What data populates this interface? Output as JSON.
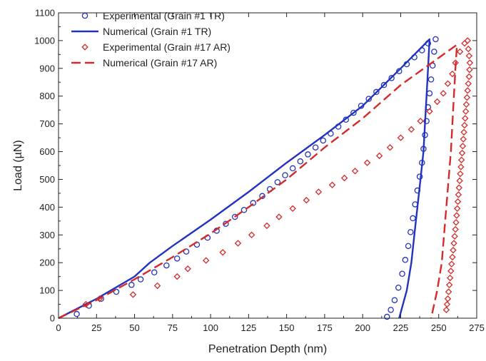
{
  "chart_data": {
    "type": "line",
    "title": "",
    "xlabel": "Penetration Depth (nm)",
    "ylabel": "Load (µN)",
    "xlim": [
      0,
      275
    ],
    "ylim": [
      0,
      1100
    ],
    "xticks": [
      0,
      25,
      50,
      75,
      100,
      125,
      150,
      175,
      200,
      225,
      250,
      275
    ],
    "yticks": [
      0,
      100,
      200,
      300,
      400,
      500,
      600,
      700,
      800,
      900,
      1000,
      1100
    ],
    "grid": false,
    "legend_position": "top-left",
    "colors": {
      "blue": "#2432c0",
      "red": "#d42a2a"
    },
    "series": [
      {
        "name": "Experimental (Grain #1 TR)",
        "style": "circle-markers",
        "color": "#2432c0",
        "points": [
          [
            12,
            15
          ],
          [
            20,
            45
          ],
          [
            28,
            70
          ],
          [
            38,
            95
          ],
          [
            48,
            120
          ],
          [
            54,
            140
          ],
          [
            63,
            165
          ],
          [
            71,
            190
          ],
          [
            78,
            215
          ],
          [
            84,
            240
          ],
          [
            91,
            265
          ],
          [
            98,
            290
          ],
          [
            104,
            315
          ],
          [
            110,
            340
          ],
          [
            116,
            365
          ],
          [
            122,
            390
          ],
          [
            128,
            415
          ],
          [
            134,
            440
          ],
          [
            139,
            465
          ],
          [
            144,
            490
          ],
          [
            149,
            515
          ],
          [
            154,
            540
          ],
          [
            159,
            565
          ],
          [
            164,
            590
          ],
          [
            169,
            615
          ],
          [
            174,
            640
          ],
          [
            179,
            665
          ],
          [
            184,
            690
          ],
          [
            189,
            715
          ],
          [
            194,
            740
          ],
          [
            199,
            765
          ],
          [
            204,
            790
          ],
          [
            209,
            815
          ],
          [
            214,
            840
          ],
          [
            219,
            865
          ],
          [
            224,
            890
          ],
          [
            229,
            915
          ],
          [
            234,
            940
          ],
          [
            239,
            965
          ],
          [
            243,
            990
          ],
          [
            248,
            1005
          ],
          [
            247,
            960
          ],
          [
            246,
            910
          ],
          [
            245,
            860
          ],
          [
            244,
            810
          ],
          [
            243,
            760
          ],
          [
            242,
            710
          ],
          [
            241,
            660
          ],
          [
            240,
            610
          ],
          [
            239,
            560
          ],
          [
            237.5,
            510
          ],
          [
            236,
            460
          ],
          [
            234.5,
            410
          ],
          [
            233,
            360
          ],
          [
            231.5,
            310
          ],
          [
            230,
            260
          ],
          [
            228,
            210
          ],
          [
            226,
            160
          ],
          [
            223.5,
            110
          ],
          [
            221,
            65
          ],
          [
            218.5,
            30
          ],
          [
            216,
            5
          ]
        ]
      },
      {
        "name": "Numerical (Grain #1 TR)",
        "style": "solid-line",
        "color": "#2432c0",
        "points": [
          [
            0,
            0
          ],
          [
            25,
            70
          ],
          [
            50,
            150
          ],
          [
            60,
            200
          ],
          [
            75,
            260
          ],
          [
            100,
            355
          ],
          [
            125,
            455
          ],
          [
            150,
            560
          ],
          [
            175,
            660
          ],
          [
            200,
            765
          ],
          [
            225,
            900
          ],
          [
            244,
            1005
          ],
          [
            243,
            900
          ],
          [
            242,
            800
          ],
          [
            241,
            700
          ],
          [
            240,
            600
          ],
          [
            238,
            500
          ],
          [
            236,
            400
          ],
          [
            234,
            300
          ],
          [
            232,
            200
          ],
          [
            229,
            100
          ],
          [
            224,
            0
          ]
        ]
      },
      {
        "name": "Experimental (Grain #17 AR)",
        "style": "diamond-markers",
        "color": "#d42a2a",
        "points": [
          [
            18,
            50
          ],
          [
            27,
            70
          ],
          [
            49,
            85
          ],
          [
            65,
            117
          ],
          [
            78,
            150
          ],
          [
            85,
            178
          ],
          [
            97,
            208
          ],
          [
            108,
            237
          ],
          [
            118,
            270
          ],
          [
            127,
            300
          ],
          [
            137,
            333
          ],
          [
            145,
            365
          ],
          [
            154,
            395
          ],
          [
            163,
            425
          ],
          [
            171,
            455
          ],
          [
            180,
            480
          ],
          [
            188,
            505
          ],
          [
            195,
            530
          ],
          [
            203,
            560
          ],
          [
            211,
            585
          ],
          [
            218,
            615
          ],
          [
            225,
            650
          ],
          [
            232,
            680
          ],
          [
            238,
            710
          ],
          [
            244,
            745
          ],
          [
            249,
            780
          ],
          [
            253,
            810
          ],
          [
            256,
            845
          ],
          [
            259,
            880
          ],
          [
            261,
            920
          ],
          [
            264,
            960
          ],
          [
            267,
            990
          ],
          [
            269,
            1000
          ],
          [
            269.5,
            970
          ],
          [
            270,
            945
          ],
          [
            270.5,
            920
          ],
          [
            270.3,
            895
          ],
          [
            270,
            870
          ],
          [
            269.5,
            845
          ],
          [
            269,
            820
          ],
          [
            268.6,
            795
          ],
          [
            268.2,
            770
          ],
          [
            267.8,
            745
          ],
          [
            267.4,
            720
          ],
          [
            267,
            695
          ],
          [
            266.6,
            670
          ],
          [
            266.2,
            645
          ],
          [
            265.8,
            620
          ],
          [
            265.4,
            595
          ],
          [
            265,
            570
          ],
          [
            264.6,
            545
          ],
          [
            264.2,
            520
          ],
          [
            263.8,
            495
          ],
          [
            263.4,
            470
          ],
          [
            263,
            445
          ],
          [
            262.6,
            420
          ],
          [
            262.2,
            395
          ],
          [
            261.8,
            370
          ],
          [
            261.4,
            345
          ],
          [
            261,
            320
          ],
          [
            260.5,
            295
          ],
          [
            260,
            270
          ],
          [
            259.5,
            245
          ],
          [
            259,
            220
          ],
          [
            258.5,
            195
          ],
          [
            258,
            170
          ],
          [
            257.5,
            145
          ],
          [
            257,
            120
          ],
          [
            256.5,
            95
          ],
          [
            256,
            70
          ],
          [
            255.5,
            50
          ],
          [
            255,
            30
          ]
        ]
      },
      {
        "name": "Numerical (Grain #17 AR)",
        "style": "dashed-line",
        "color": "#d42a2a",
        "points": [
          [
            0,
            0
          ],
          [
            25,
            65
          ],
          [
            50,
            140
          ],
          [
            75,
            220
          ],
          [
            100,
            305
          ],
          [
            125,
            400
          ],
          [
            150,
            500
          ],
          [
            175,
            615
          ],
          [
            200,
            720
          ],
          [
            225,
            840
          ],
          [
            262,
            985
          ],
          [
            261,
            900
          ],
          [
            260,
            800
          ],
          [
            259,
            700
          ],
          [
            258,
            600
          ],
          [
            256.5,
            500
          ],
          [
            255,
            400
          ],
          [
            253.5,
            300
          ],
          [
            252,
            200
          ],
          [
            249,
            100
          ],
          [
            245,
            0
          ]
        ]
      }
    ]
  }
}
